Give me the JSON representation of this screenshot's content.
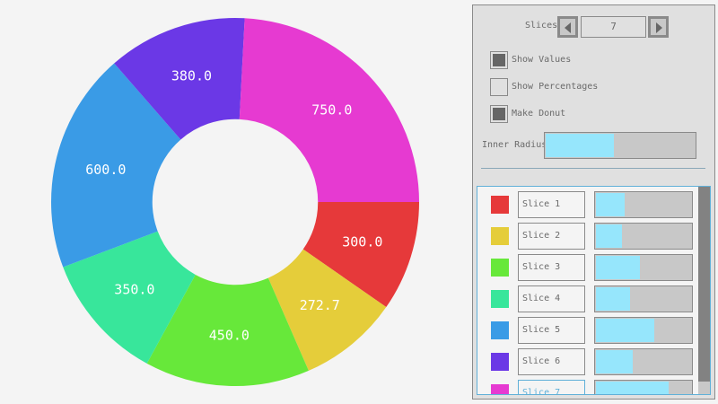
{
  "chart_data": {
    "type": "pie",
    "donut": true,
    "inner_radius_fraction": 0.45,
    "start_angle": "3 o'clock, clockwise",
    "show_values": true,
    "show_percentages": false,
    "categories": [
      "Slice 1",
      "Slice 2",
      "Slice 3",
      "Slice 4",
      "Slice 5",
      "Slice 6",
      "Slice 7"
    ],
    "values": [
      300.0,
      272.7,
      450.0,
      350.0,
      600.0,
      380.0,
      750.0
    ],
    "value_labels": [
      "300.0",
      "272.7",
      "450.0",
      "350.0",
      "600.0",
      "380.0",
      "750.0"
    ],
    "colors": [
      "#e6393a",
      "#e5cd3a",
      "#67e83a",
      "#38e69b",
      "#3a9be6",
      "#6b38e6",
      "#e63ad1"
    ]
  },
  "controls": {
    "slices_label": "Slices",
    "slices_value": "7",
    "show_values_label": "Show Values",
    "show_values": true,
    "show_percentages_label": "Show Percentages",
    "show_percentages": false,
    "make_donut_label": "Make Donut",
    "make_donut": true,
    "inner_radius_label": "Inner Radius",
    "inner_radius": 0.45
  },
  "slider_max": 1000
}
